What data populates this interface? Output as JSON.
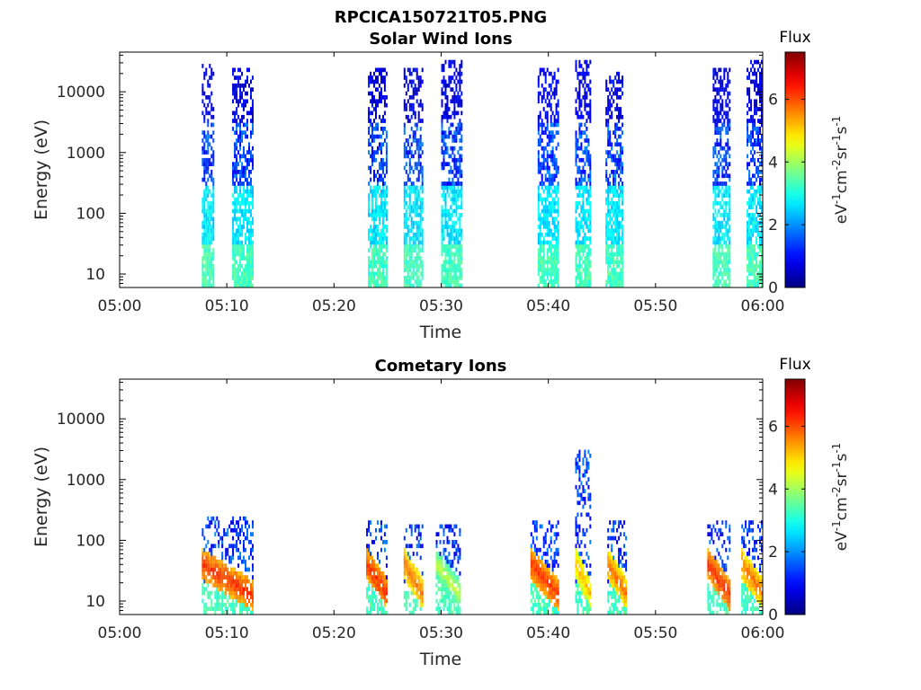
{
  "figure": {
    "title": "RPCICA150721T05.PNG"
  },
  "chart_data": [
    {
      "type": "heatmap",
      "title": "Solar Wind Ions",
      "xlabel": "Time",
      "ylabel": "Energy (eV)",
      "x_ticks": [
        "05:00",
        "05:10",
        "05:20",
        "05:30",
        "05:40",
        "05:50",
        "06:00"
      ],
      "y_ticks": [
        "10",
        "100",
        "1000",
        "10000"
      ],
      "y_scale": "log",
      "xlim": [
        "05:00",
        "06:00"
      ],
      "ylim": [
        6,
        45000
      ],
      "colorbar": {
        "label": "Flux",
        "unit": "eV-1cm-2sr-1s-1",
        "range": [
          0,
          7.5
        ],
        "ticks": [
          "0",
          "2",
          "4",
          "6"
        ],
        "colormap": "jet"
      },
      "bursts": [
        {
          "start": "05:07:40",
          "end": "05:08:50",
          "emax": 30000,
          "base_flux": 3.0
        },
        {
          "start": "05:10:30",
          "end": "05:12:30",
          "emax": 25000,
          "base_flux": 3.0
        },
        {
          "start": "05:23:10",
          "end": "05:25:00",
          "emax": 25000,
          "base_flux": 3.0
        },
        {
          "start": "05:26:30",
          "end": "05:28:20",
          "emax": 25000,
          "base_flux": 3.0
        },
        {
          "start": "05:30:00",
          "end": "05:32:00",
          "emax": 35000,
          "base_flux": 3.0
        },
        {
          "start": "05:39:00",
          "end": "05:41:00",
          "emax": 25000,
          "base_flux": 3.0
        },
        {
          "start": "05:42:30",
          "end": "05:44:00",
          "emax": 35000,
          "base_flux": 3.0
        },
        {
          "start": "05:45:20",
          "end": "05:47:00",
          "emax": 20000,
          "base_flux": 3.0
        },
        {
          "start": "05:55:20",
          "end": "05:57:00",
          "emax": 25000,
          "base_flux": 3.0
        },
        {
          "start": "05:58:30",
          "end": "06:00:10",
          "emax": 35000,
          "base_flux": 3.0
        }
      ]
    },
    {
      "type": "heatmap",
      "title": "Cometary Ions",
      "xlabel": "Time",
      "ylabel": "Energy (eV)",
      "x_ticks": [
        "05:00",
        "05:10",
        "05:20",
        "05:30",
        "05:40",
        "05:50",
        "06:00"
      ],
      "y_ticks": [
        "10",
        "100",
        "1000",
        "10000"
      ],
      "y_scale": "log",
      "xlim": [
        "05:00",
        "06:00"
      ],
      "ylim": [
        6,
        45000
      ],
      "colorbar": {
        "label": "Flux",
        "unit": "eV-1cm-2sr-1s-1",
        "range": [
          0,
          7.5
        ],
        "ticks": [
          "0",
          "2",
          "4",
          "6"
        ],
        "colormap": "jet"
      },
      "bursts": [
        {
          "start": "05:07:40",
          "end": "05:12:30",
          "emax": 250,
          "peak_flux": 6.0
        },
        {
          "start": "05:23:00",
          "end": "05:25:00",
          "emax": 200,
          "peak_flux": 6.0
        },
        {
          "start": "05:26:30",
          "end": "05:28:20",
          "emax": 180,
          "peak_flux": 5.5
        },
        {
          "start": "05:29:30",
          "end": "05:31:50",
          "emax": 180,
          "peak_flux": 4.0
        },
        {
          "start": "05:38:20",
          "end": "05:41:00",
          "emax": 200,
          "peak_flux": 6.0
        },
        {
          "start": "05:42:30",
          "end": "05:44:00",
          "emax": 3000,
          "peak_flux": 5.0
        },
        {
          "start": "05:45:30",
          "end": "05:47:20",
          "emax": 200,
          "peak_flux": 5.5
        },
        {
          "start": "05:54:50",
          "end": "05:57:00",
          "emax": 200,
          "peak_flux": 6.0
        },
        {
          "start": "05:58:00",
          "end": "06:00:10",
          "emax": 200,
          "peak_flux": 5.5
        }
      ]
    }
  ]
}
